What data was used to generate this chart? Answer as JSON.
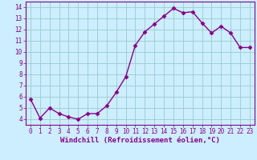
{
  "x": [
    0,
    1,
    2,
    3,
    4,
    5,
    6,
    7,
    8,
    9,
    10,
    11,
    12,
    13,
    14,
    15,
    16,
    17,
    18,
    19,
    20,
    21,
    22,
    23
  ],
  "y": [
    5.8,
    4.1,
    5.0,
    4.5,
    4.2,
    4.0,
    4.5,
    4.5,
    5.2,
    6.4,
    7.8,
    10.6,
    11.8,
    12.5,
    13.2,
    13.9,
    13.5,
    13.6,
    12.6,
    11.7,
    12.3,
    11.7,
    10.4,
    10.4
  ],
  "line_color": "#880088",
  "marker": "D",
  "marker_size": 2.5,
  "bg_color": "#cceeff",
  "grid_color": "#99cccc",
  "xlabel": "Windchill (Refroidissement éolien,°C)",
  "xlim": [
    -0.5,
    23.5
  ],
  "ylim": [
    3.5,
    14.5
  ],
  "yticks": [
    4,
    5,
    6,
    7,
    8,
    9,
    10,
    11,
    12,
    13,
    14
  ],
  "xticks": [
    0,
    1,
    2,
    3,
    4,
    5,
    6,
    7,
    8,
    9,
    10,
    11,
    12,
    13,
    14,
    15,
    16,
    17,
    18,
    19,
    20,
    21,
    22,
    23
  ],
  "tick_fontsize": 5.5,
  "xlabel_fontsize": 6.5,
  "line_width": 1.0
}
